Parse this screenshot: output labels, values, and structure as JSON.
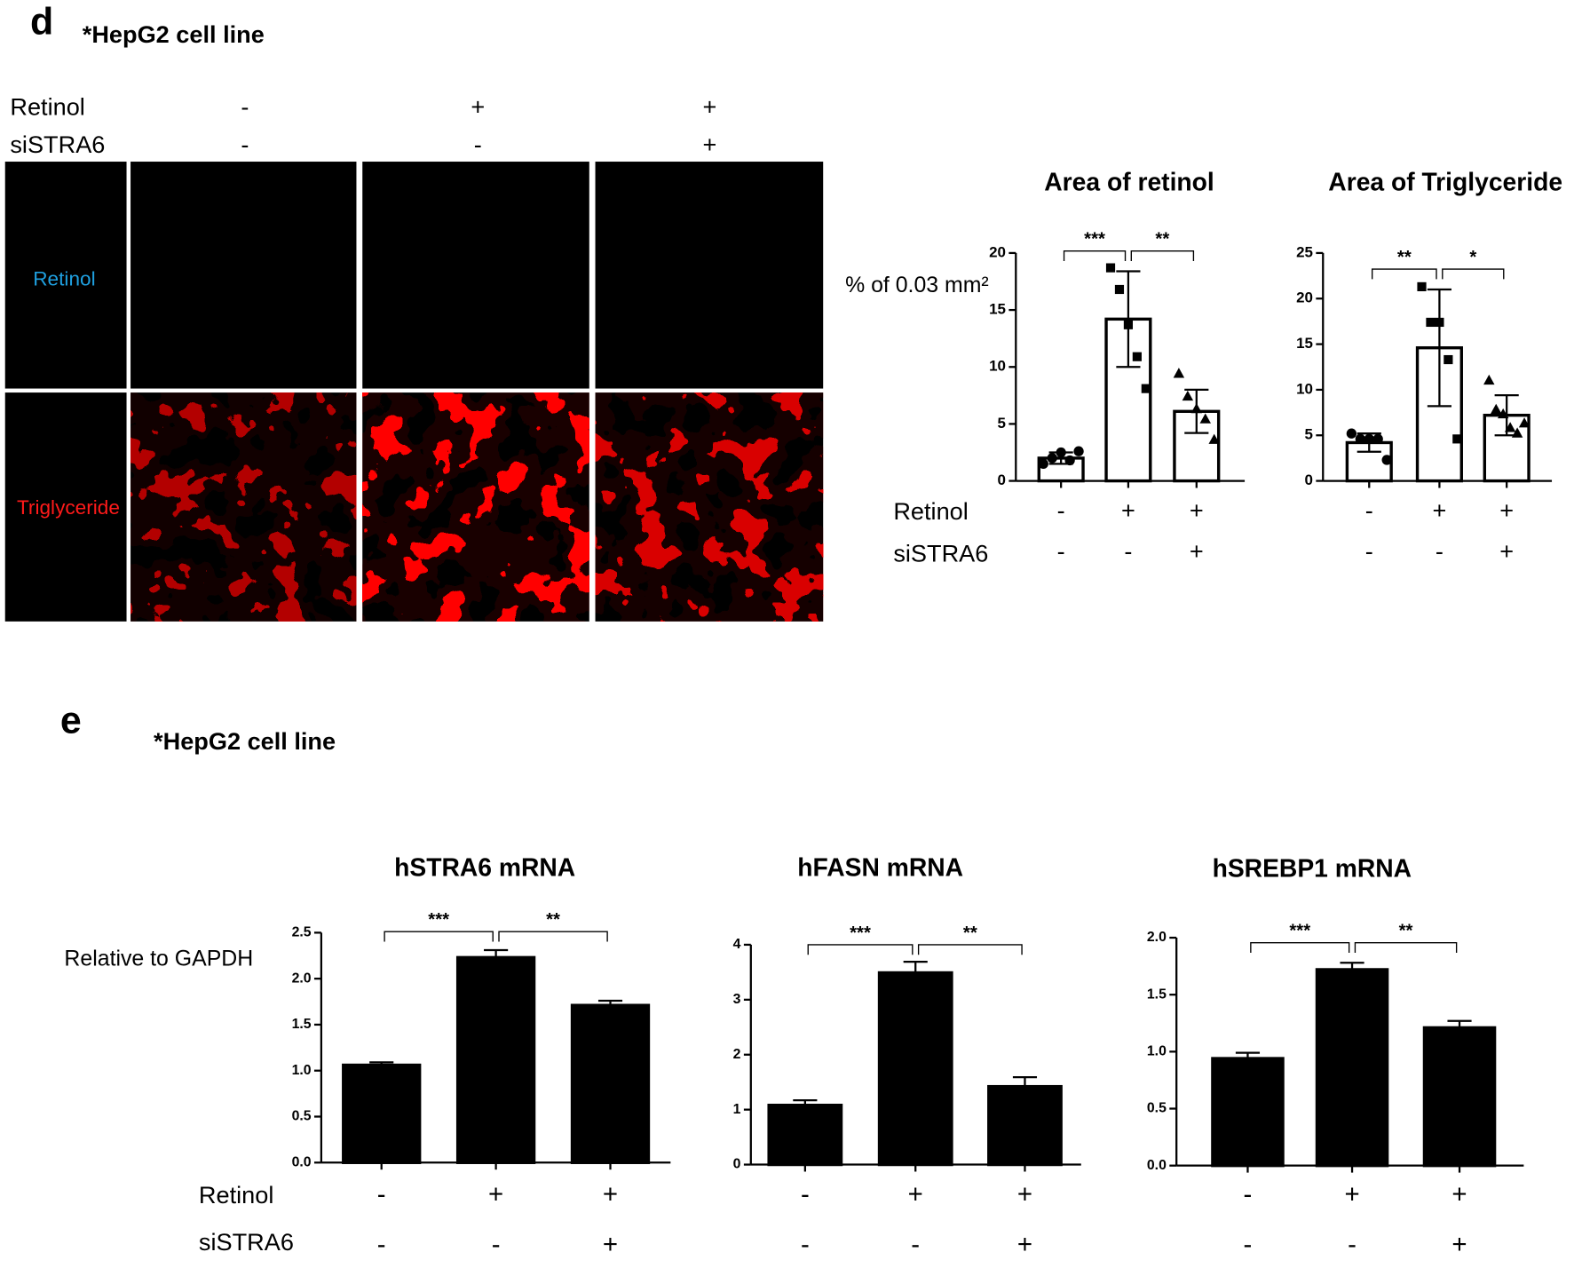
{
  "panels": [
    {
      "label": "d",
      "subtitle": "*HepG2 cell line",
      "condition_labels": [
        "Retinol",
        "siSTRA6"
      ]
    },
    {
      "label": "e",
      "subtitle": "*HepG2 cell line",
      "condition_labels": [
        "Retinol",
        "siSTRA6"
      ]
    }
  ],
  "microscopy": {
    "condition_labels": [
      "Retinol",
      "siSTRA6"
    ],
    "columns": [
      [
        "-",
        "-"
      ],
      [
        "+",
        "-"
      ],
      [
        "+",
        "+"
      ]
    ],
    "rows": [
      "Retinol",
      "Triglyceride"
    ]
  },
  "chart_data": [
    {
      "type": "bar",
      "title": "Area of retinol",
      "ylabel": "% of 0.03 mm²",
      "categories": [
        [
          "-",
          "-"
        ],
        [
          "+",
          "-"
        ],
        [
          "+",
          "+"
        ]
      ],
      "values": [
        2.0,
        14.2,
        6.1
      ],
      "errors": [
        0.5,
        4.2,
        1.9
      ],
      "points": [
        [
          1.5,
          2.0,
          2.5,
          1.8,
          2.6
        ],
        [
          18.7,
          16.8,
          13.7,
          10.9,
          8.1
        ],
        [
          9.4,
          7.4,
          6.3,
          5.4,
          3.6
        ]
      ],
      "markers": [
        "circle",
        "square",
        "triangle"
      ],
      "color": "#ffffff",
      "ylim": [
        0,
        20
      ],
      "yticks": [
        0,
        5,
        10,
        15,
        20
      ],
      "significance": [
        "***",
        "**"
      ]
    },
    {
      "type": "bar",
      "title": "Area of Triglyceride",
      "categories": [
        [
          "-",
          "-"
        ],
        [
          "+",
          "-"
        ],
        [
          "+",
          "+"
        ]
      ],
      "values": [
        4.2,
        14.6,
        7.2
      ],
      "errors": [
        1.0,
        6.4,
        2.2
      ],
      "points": [
        [
          5.2,
          4.6,
          4.6,
          4.6,
          2.3
        ],
        [
          21.3,
          17.4,
          17.4,
          13.3,
          4.6
        ],
        [
          11.0,
          7.8,
          7.3,
          5.8,
          5.2,
          6.3
        ]
      ],
      "markers": [
        "circle",
        "square",
        "triangle"
      ],
      "color": "#ffffff",
      "ylim": [
        0,
        25
      ],
      "yticks": [
        0,
        5,
        10,
        15,
        20,
        25
      ],
      "significance": [
        "**",
        "*"
      ]
    },
    {
      "type": "bar",
      "title": "hSTRA6 mRNA",
      "ylabel": "Relative to GAPDH",
      "categories": [
        [
          "-",
          "-"
        ],
        [
          "+",
          "-"
        ],
        [
          "+",
          "+"
        ]
      ],
      "values": [
        1.06,
        2.23,
        1.71
      ],
      "errors": [
        0.03,
        0.08,
        0.05
      ],
      "color": "#000000",
      "ylim": [
        0,
        2.5
      ],
      "yticks": [
        {
          "value": 0,
          "label": "0.0"
        },
        {
          "value": 0.5,
          "label": "0.5"
        },
        {
          "value": 1,
          "label": "1.0"
        },
        {
          "value": 1.5,
          "label": "1.5"
        },
        {
          "value": 2,
          "label": "2.0"
        },
        {
          "value": 2.5,
          "label": "2.5"
        }
      ],
      "significance": [
        "***",
        "**"
      ]
    },
    {
      "type": "bar",
      "title": "hFASN mRNA",
      "categories": [
        [
          "-",
          "-"
        ],
        [
          "+",
          "-"
        ],
        [
          "+",
          "+"
        ]
      ],
      "values": [
        1.08,
        3.49,
        1.42
      ],
      "errors": [
        0.09,
        0.2,
        0.17
      ],
      "color": "#000000",
      "ylim": [
        0,
        4
      ],
      "yticks": [
        0,
        1,
        2,
        3,
        4
      ],
      "significance": [
        "***",
        "**"
      ]
    },
    {
      "type": "bar",
      "title": "hSREBP1 mRNA",
      "categories": [
        [
          "-",
          "-"
        ],
        [
          "+",
          "-"
        ],
        [
          "+",
          "+"
        ]
      ],
      "values": [
        0.94,
        1.72,
        1.21
      ],
      "errors": [
        0.05,
        0.06,
        0.06
      ],
      "color": "#000000",
      "ylim": [
        0,
        2.0
      ],
      "yticks": [
        {
          "value": 0,
          "label": "0.0"
        },
        {
          "value": 0.5,
          "label": "0.5"
        },
        {
          "value": 1,
          "label": "1.0"
        },
        {
          "value": 1.5,
          "label": "1.5"
        },
        {
          "value": 2,
          "label": "2.0"
        }
      ],
      "significance": [
        "***",
        "**"
      ]
    }
  ]
}
